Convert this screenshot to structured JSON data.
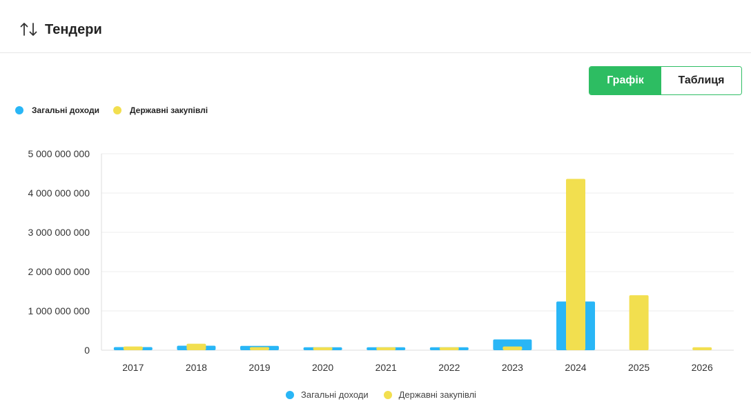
{
  "header": {
    "title": "Тендери",
    "icon": "sort-arrows-icon"
  },
  "view_toggle": {
    "options": [
      "Графік",
      "Таблиця"
    ],
    "selected": "Графік",
    "active_color": "#2dbd62"
  },
  "chart_data": {
    "type": "bar",
    "categories": [
      "2017",
      "2018",
      "2019",
      "2020",
      "2021",
      "2022",
      "2023",
      "2024",
      "2025",
      "2026"
    ],
    "series": [
      {
        "name": "Загальні доходи",
        "color": "#29b6f6",
        "values": [
          80000000,
          115000000,
          110000000,
          75000000,
          75000000,
          75000000,
          275000000,
          1240000000,
          0,
          0
        ]
      },
      {
        "name": "Державні закупівлі",
        "color": "#f2df4f",
        "values": [
          95000000,
          165000000,
          80000000,
          75000000,
          75000000,
          75000000,
          95000000,
          4360000000,
          1400000000,
          75000000
        ]
      }
    ],
    "yticks": [
      "0",
      "1 000 000 000",
      "2 000 000 000",
      "3 000 000 000",
      "4 000 000 000",
      "5 000 000 000"
    ],
    "ylim": [
      0,
      5000000000
    ],
    "grid": true,
    "legend_position": "top-left and bottom-center"
  }
}
